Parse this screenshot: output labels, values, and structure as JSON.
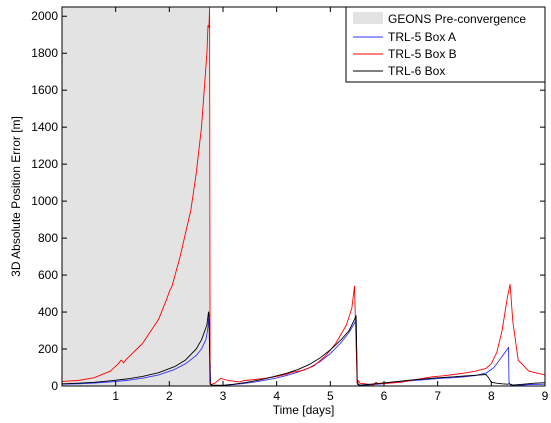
{
  "chart_data": {
    "type": "line",
    "xlabel": "Time [days]",
    "ylabel": "3D Absolute Position Error [m]",
    "xlim": [
      0,
      9
    ],
    "ylim": [
      0,
      2050
    ],
    "xticks": [
      1,
      2,
      3,
      4,
      5,
      6,
      7,
      8,
      9
    ],
    "xtick_labels": [
      "1",
      "2",
      "3",
      "4",
      "5",
      "6",
      "7",
      "8",
      "9"
    ],
    "yticks": [
      0,
      200,
      400,
      600,
      800,
      1000,
      1200,
      1400,
      1600,
      1800,
      2000
    ],
    "ytick_labels": [
      "0",
      "200",
      "400",
      "600",
      "800",
      "1000",
      "1200",
      "1400",
      "1600",
      "1800",
      "2000"
    ],
    "grid": "off",
    "legend_location": "top-right",
    "shaded_region": {
      "label": "GEONS Pre-convergence",
      "x_start": 0,
      "x_end": 2.75,
      "color": "#e3e3e3"
    },
    "series": [
      {
        "name": "TRL-5 Box A",
        "color": "#3333ff",
        "x": [
          0.0,
          0.3,
          0.6,
          0.9,
          1.2,
          1.5,
          1.8,
          2.1,
          2.3,
          2.5,
          2.6,
          2.68,
          2.7,
          2.72,
          2.73,
          2.74,
          2.77,
          2.8,
          3.0,
          3.2,
          3.4,
          3.6,
          3.8,
          4.0,
          4.2,
          4.4,
          4.6,
          4.8,
          5.0,
          5.2,
          5.35,
          5.45,
          5.48,
          5.5,
          5.52,
          5.55,
          5.7,
          5.9,
          6.1,
          6.3,
          6.5,
          6.7,
          6.9,
          7.1,
          7.3,
          7.5,
          7.7,
          7.9,
          8.05,
          8.15,
          8.25,
          8.3,
          8.32,
          8.33,
          8.36,
          8.5,
          8.7,
          9.0
        ],
        "y": [
          10,
          12,
          16,
          22,
          30,
          42,
          60,
          90,
          120,
          165,
          200,
          250,
          280,
          320,
          360,
          380,
          5,
          2,
          3,
          8,
          14,
          22,
          32,
          44,
          58,
          75,
          98,
          130,
          175,
          235,
          290,
          340,
          360,
          20,
          5,
          3,
          5,
          10,
          16,
          22,
          28,
          33,
          38,
          42,
          45,
          50,
          56,
          70,
          100,
          140,
          180,
          200,
          210,
          20,
          5,
          3,
          8,
          10
        ]
      },
      {
        "name": "TRL-5 Box B",
        "color": "#ff0000",
        "x": [
          0.0,
          0.3,
          0.6,
          0.9,
          1.05,
          1.1,
          1.15,
          1.2,
          1.5,
          1.8,
          1.95,
          2.0,
          2.05,
          2.2,
          2.4,
          2.5,
          2.6,
          2.65,
          2.7,
          2.72,
          2.74,
          2.75,
          2.76,
          2.78,
          2.85,
          2.95,
          3.0,
          3.1,
          3.3,
          3.4,
          3.6,
          3.8,
          4.0,
          4.2,
          4.3,
          4.5,
          4.7,
          4.9,
          5.1,
          5.3,
          5.4,
          5.45,
          5.5,
          5.52,
          5.55,
          5.7,
          5.8,
          5.85,
          5.9,
          6.1,
          6.3,
          6.5,
          6.7,
          6.9,
          7.1,
          7.3,
          7.5,
          7.7,
          7.9,
          8.0,
          8.1,
          8.2,
          8.3,
          8.35,
          8.4,
          8.5,
          8.7,
          9.0
        ],
        "y": [
          25,
          30,
          45,
          80,
          120,
          140,
          125,
          145,
          230,
          360,
          470,
          510,
          540,
          700,
          950,
          1150,
          1400,
          1600,
          1800,
          1950,
          1940,
          2050,
          20,
          8,
          15,
          40,
          38,
          30,
          22,
          30,
          35,
          42,
          52,
          65,
          75,
          85,
          110,
          160,
          230,
          330,
          420,
          540,
          10,
          30,
          15,
          10,
          5,
          20,
          12,
          15,
          20,
          30,
          40,
          50,
          55,
          62,
          70,
          80,
          95,
          120,
          180,
          300,
          480,
          550,
          350,
          140,
          80,
          60
        ]
      },
      {
        "name": "TRL-6 Box",
        "color": "#000000",
        "x": [
          0.0,
          0.3,
          0.6,
          0.9,
          1.2,
          1.5,
          1.8,
          2.1,
          2.3,
          2.5,
          2.6,
          2.7,
          2.73,
          2.74,
          2.76,
          2.8,
          3.0,
          3.2,
          3.4,
          3.6,
          3.8,
          4.0,
          4.2,
          4.4,
          4.6,
          4.8,
          5.0,
          5.2,
          5.35,
          5.45,
          5.48,
          5.5,
          5.52,
          5.55,
          5.7,
          5.9,
          6.1,
          6.3,
          6.5,
          6.7,
          6.9,
          7.1,
          7.3,
          7.5,
          7.7,
          7.9,
          7.95,
          8.0,
          8.1,
          8.2,
          8.3,
          8.33,
          8.35,
          8.4,
          8.6,
          8.8,
          9.0
        ],
        "y": [
          12,
          15,
          20,
          28,
          38,
          52,
          72,
          105,
          140,
          200,
          250,
          330,
          400,
          390,
          10,
          5,
          4,
          10,
          18,
          28,
          40,
          55,
          70,
          90,
          115,
          150,
          195,
          250,
          300,
          360,
          380,
          30,
          10,
          5,
          8,
          14,
          20,
          26,
          32,
          37,
          42,
          46,
          50,
          54,
          58,
          62,
          45,
          20,
          15,
          12,
          10,
          12,
          10,
          5,
          10,
          15,
          18
        ]
      }
    ]
  }
}
